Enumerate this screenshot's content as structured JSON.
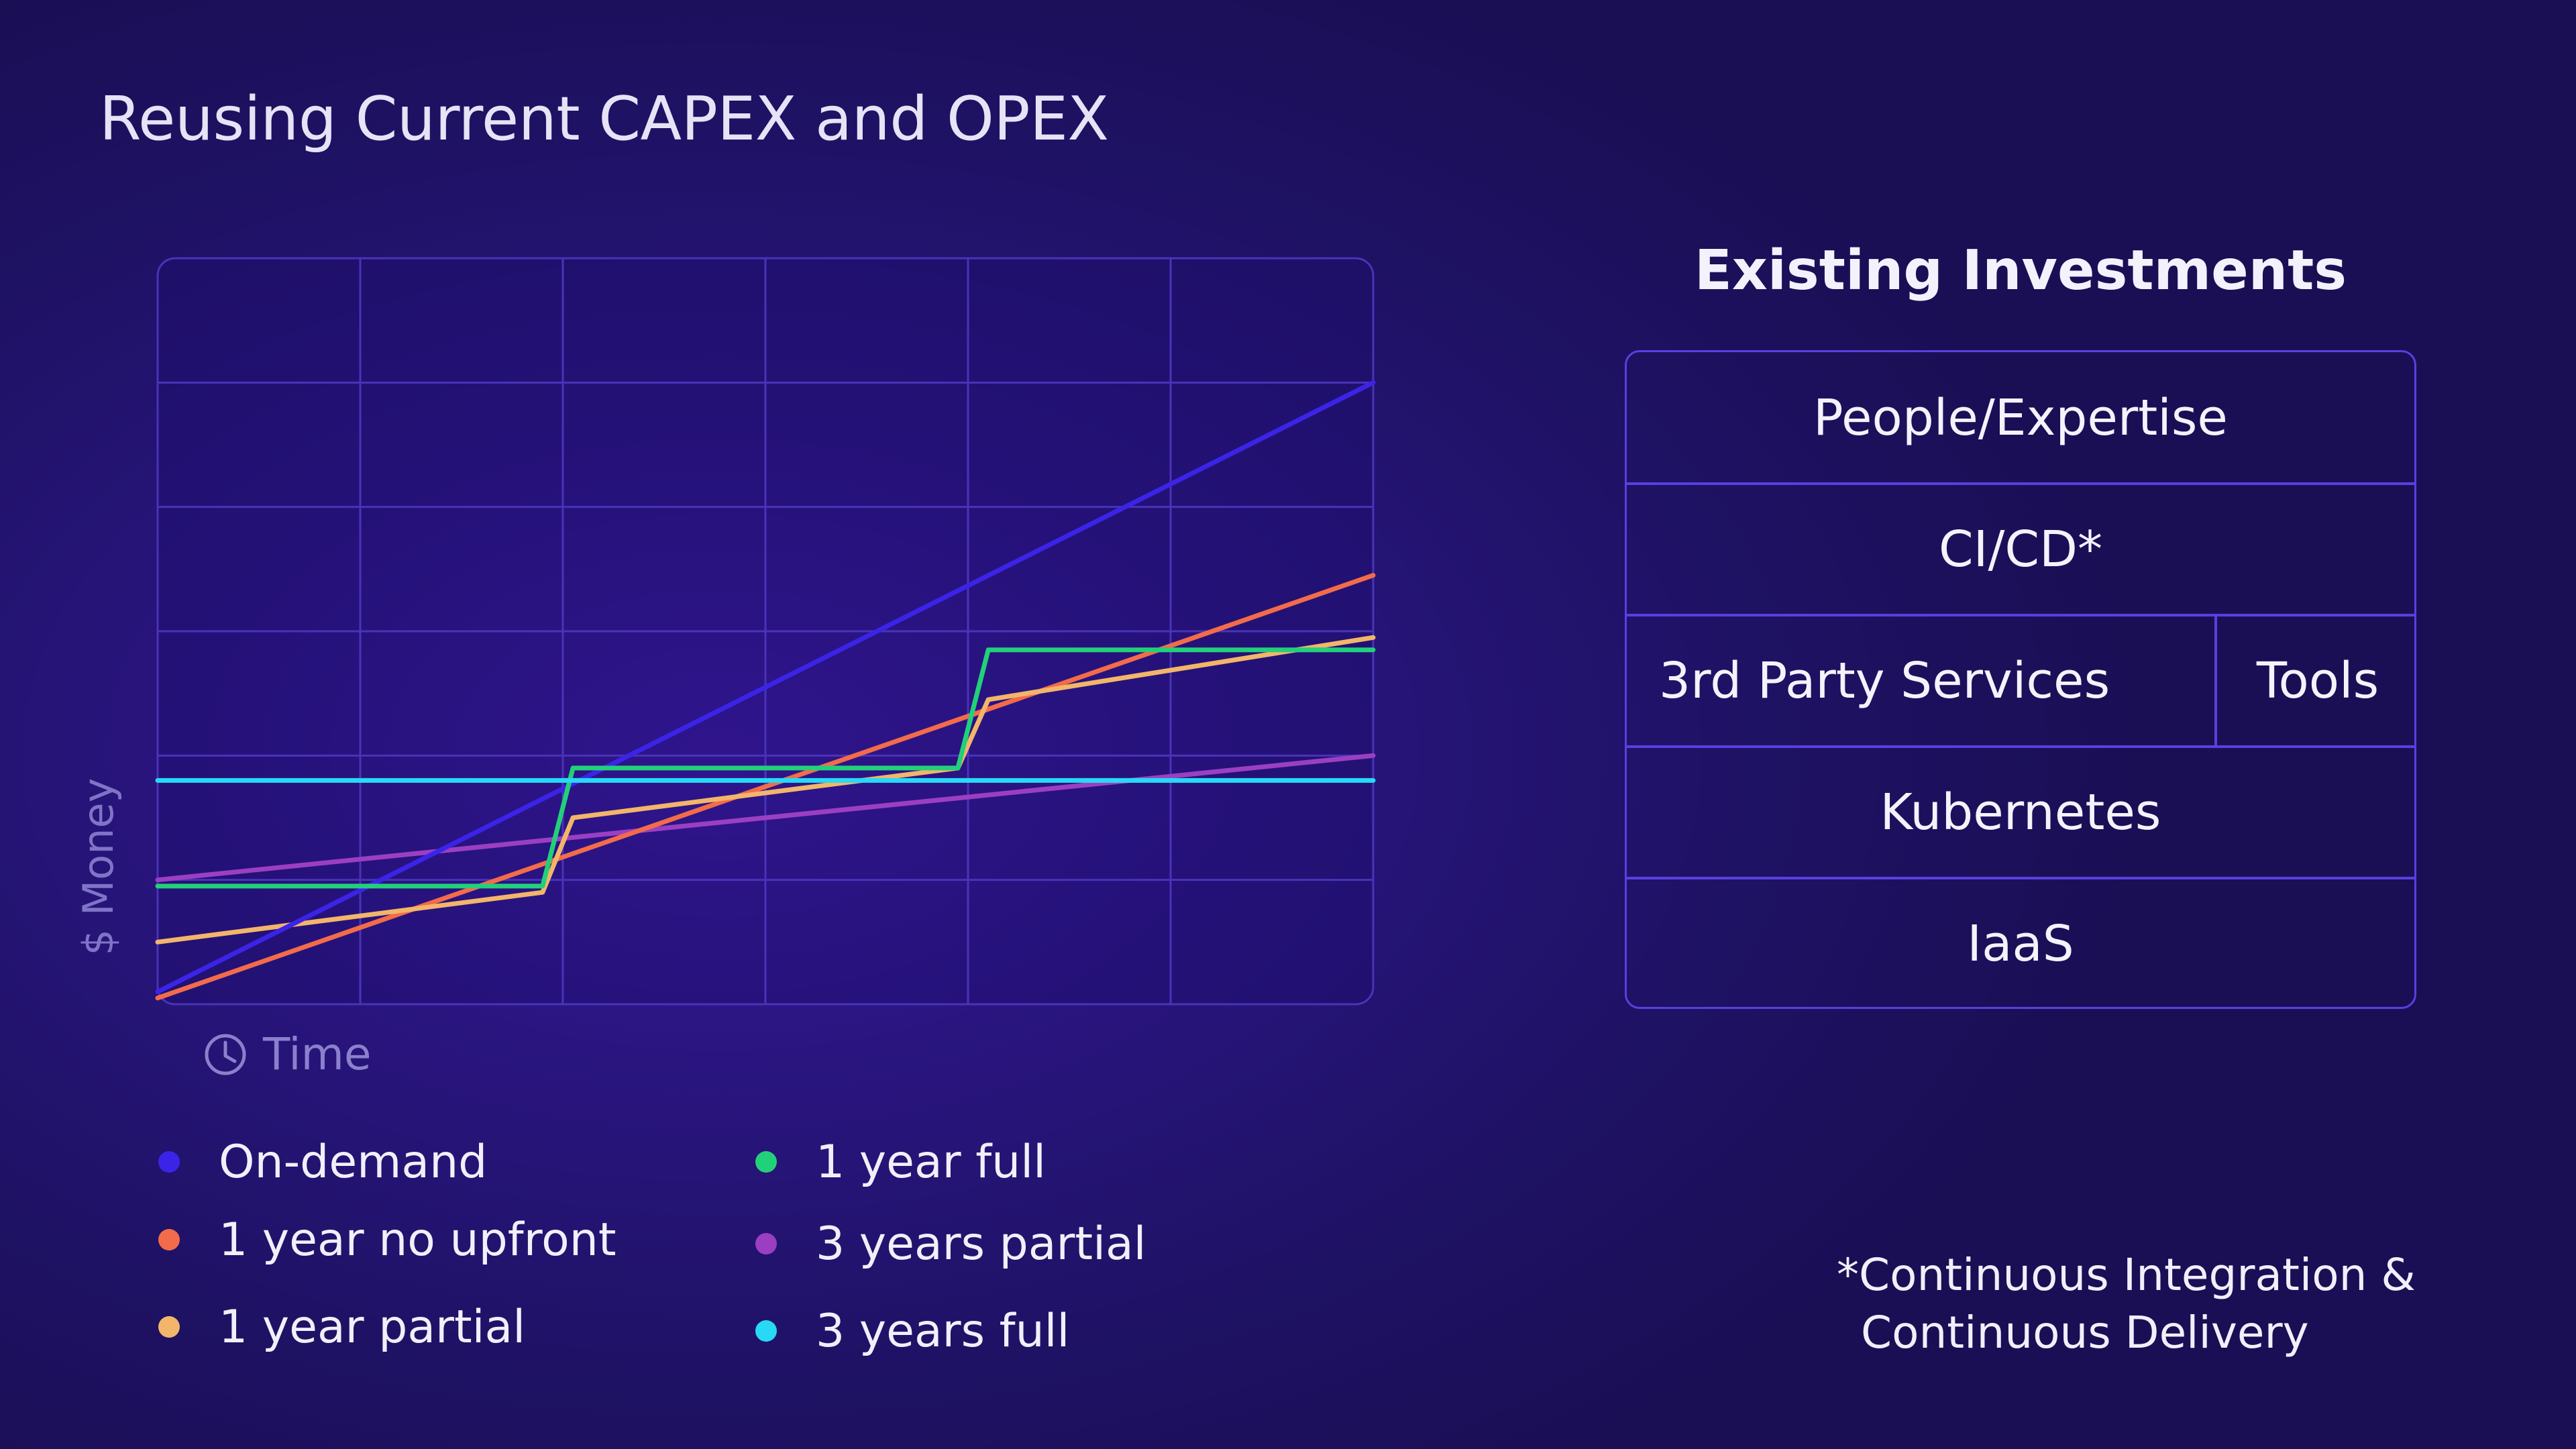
{
  "title": "Reusing Current CAPEX and OPEX",
  "chart_data": {
    "type": "line",
    "xlabel": "Time",
    "ylabel": "$ Money",
    "grid": true,
    "x_grid_divisions": 6,
    "y_grid_divisions": 6,
    "xlim": [
      0,
      6
    ],
    "ylim": [
      0,
      6
    ],
    "legend_position": "bottom-left",
    "series": [
      {
        "name": "On-demand",
        "color": "#3b24e8",
        "points": [
          [
            0,
            0.1
          ],
          [
            6,
            5.0
          ]
        ]
      },
      {
        "name": "1 year no upfront",
        "color": "#f26b4a",
        "points": [
          [
            0,
            0.05
          ],
          [
            6,
            3.45
          ]
        ]
      },
      {
        "name": "1 year partial",
        "color": "#f2b56a",
        "points": [
          [
            0,
            0.5
          ],
          [
            1.9,
            0.9
          ],
          [
            2.05,
            1.5
          ],
          [
            3.95,
            1.9
          ],
          [
            4.1,
            2.45
          ],
          [
            6,
            2.95
          ]
        ]
      },
      {
        "name": "1 year full",
        "color": "#22d07a",
        "points": [
          [
            0,
            0.95
          ],
          [
            1.9,
            0.95
          ],
          [
            2.05,
            1.9
          ],
          [
            3.95,
            1.9
          ],
          [
            4.1,
            2.85
          ],
          [
            6,
            2.85
          ]
        ]
      },
      {
        "name": "3 years partial",
        "color": "#9b3fc2",
        "points": [
          [
            0,
            1.0
          ],
          [
            6,
            2.0
          ]
        ]
      },
      {
        "name": "3 years full",
        "color": "#27d9f5",
        "points": [
          [
            0,
            1.8
          ],
          [
            6,
            1.8
          ]
        ]
      }
    ]
  },
  "investments": {
    "title": "Existing Investments",
    "row1": "People/Expertise",
    "row2": "CI/CD*",
    "row3_left": "3rd Party Services",
    "row3_right": "Tools",
    "row4": "Kubernetes",
    "row5": "IaaS"
  },
  "footnote": {
    "line1": "*Continuous Integration &",
    "line2": "Continuous Delivery"
  }
}
